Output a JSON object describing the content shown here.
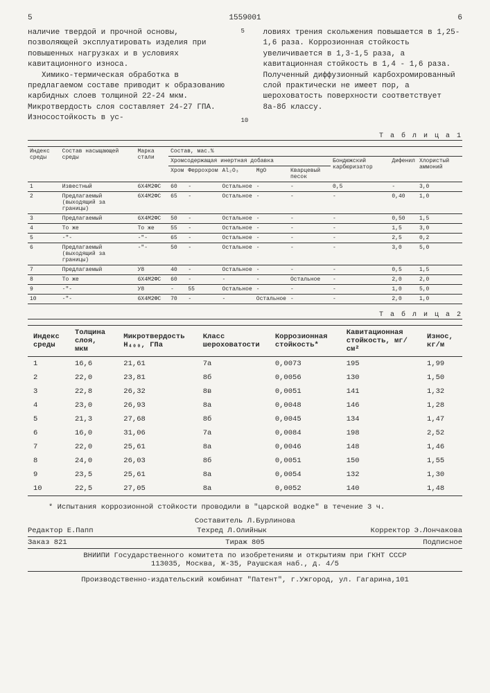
{
  "header": {
    "page_left": "5",
    "doc_number": "1559001",
    "page_right": "6"
  },
  "col_left": {
    "p1": "наличие твердой и прочной основы, позволяющей эксплуатировать изделия при повышенных нагрузках и в условиях кавитационного износа.",
    "p2": "Химико-термическая обработка в предлагаемом составе приводит к образованию карбидных слоев толщиной 22-24 мкм. Микротвердость слоя составляет 24-27 ГПА. Износостойкость в ус-"
  },
  "col_right": {
    "p1": "ловиях трения скольжения повышается в 1,25-1,6 раза. Коррозионная стойкость увеличивается в 1,3-1,5 раза, а кавитационная стойкость в 1,4 - 1,6 раза. Полученный диффузионный карбохромированный слой практически не имеет пор, а шероховатость поверхности соответствует 8а-8б классу."
  },
  "line_marks": {
    "m5": "5",
    "m10": "10"
  },
  "table1_label": "Т а б л и ц а 1",
  "table1_headers": {
    "h1": "Индекс среды",
    "h2": "Состав насыщающей среды",
    "h3": "Марка стали",
    "h4": "Состав, мас.%",
    "h5": "Хромсодержащая инертная добавка",
    "h6": "Бондюжский карбюризатор",
    "h7": "Дифенил",
    "h8": "Хлористый аммоний",
    "s1": "Хром",
    "s2": "Феррохром",
    "s3": "Al₂O₃",
    "s4": "MgO",
    "s5": "Кварцевый песок"
  },
  "table1_rows": [
    [
      "1",
      "Известный",
      "6Х4М2ФС",
      "60",
      "-",
      "Остальное",
      "-",
      "-",
      "0,5",
      "-",
      "3,0"
    ],
    [
      "2",
      "Предлагаемый (выходящий за границы)",
      "6Х4М2ФС",
      "65",
      "-",
      "Остальное",
      "-",
      "-",
      "-",
      "0,40",
      "1,0"
    ],
    [
      "3",
      "Предлагаемый",
      "6Х4М2ФС",
      "50",
      "-",
      "Остальное",
      "-",
      "-",
      "-",
      "0,50",
      "1,5"
    ],
    [
      "4",
      "То же",
      "То же",
      "55",
      "-",
      "Остальное",
      "-",
      "-",
      "-",
      "1,5",
      "3,0"
    ],
    [
      "5",
      "-\"-",
      "-\"-",
      "65",
      "-",
      "Остальное",
      "-",
      "-",
      "-",
      "2,5",
      "0,2"
    ],
    [
      "6",
      "Предлагаемый (выходящий за границы)",
      "-\"-",
      "50",
      "-",
      "Остальное",
      "-",
      "-",
      "-",
      "3,0",
      "5,0"
    ],
    [
      "7",
      "Предлагаемый",
      "У8",
      "40",
      "-",
      "Остальное",
      "-",
      "-",
      "-",
      "0,5",
      "1,5"
    ],
    [
      "8",
      "То же",
      "6Х4М2ФС",
      "60",
      "-",
      "-",
      "-",
      "Остальное",
      "-",
      "2,0",
      "2,0"
    ],
    [
      "9",
      "-\"-",
      "У8",
      "-",
      "55",
      "Остальное",
      "-",
      "-",
      "-",
      "1,0",
      "5,0"
    ],
    [
      "10",
      "-\"-",
      "6Х4М2ФС",
      "70",
      "-",
      "-",
      "Остальное",
      "-",
      "-",
      "2,0",
      "1,0"
    ]
  ],
  "table2_label": "Т а б л и ц а  2",
  "table2_headers": [
    "Индекс среды",
    "Толщина слоя, мкм",
    "Микротвердость H₄₀₀, ГПа",
    "Класс шероховатости",
    "Коррозионная стойкость*",
    "Кавитационная стойкость, мг/см²",
    "Износ, кг/м"
  ],
  "table2_rows": [
    [
      "1",
      "16,6",
      "21,61",
      "7а",
      "0,0073",
      "195",
      "1,99"
    ],
    [
      "2",
      "22,0",
      "23,81",
      "8б",
      "0,0056",
      "130",
      "1,50"
    ],
    [
      "3",
      "22,8",
      "26,32",
      "8в",
      "0,0051",
      "141",
      "1,32"
    ],
    [
      "4",
      "23,0",
      "26,93",
      "8а",
      "0,0048",
      "146",
      "1,28"
    ],
    [
      "5",
      "21,3",
      "27,68",
      "8б",
      "0,0045",
      "134",
      "1,47"
    ],
    [
      "6",
      "16,0",
      "31,06",
      "7а",
      "0,0084",
      "198",
      "2,52"
    ],
    [
      "7",
      "22,0",
      "25,61",
      "8а",
      "0,0046",
      "148",
      "1,46"
    ],
    [
      "8",
      "24,0",
      "26,03",
      "8б",
      "0,0051",
      "150",
      "1,55"
    ],
    [
      "9",
      "23,5",
      "25,61",
      "8а",
      "0,0054",
      "132",
      "1,30"
    ],
    [
      "10",
      "22,5",
      "27,05",
      "8а",
      "0,0052",
      "140",
      "1,48"
    ]
  ],
  "footnote": "* Испытания коррозионной стойкости проводили в \"царской водке\" в течение 3 ч.",
  "credits": {
    "compiler": "Составитель  Л.Бурлинова",
    "editor": "Редактор Е.Папп",
    "tech_editor": "Техред Л.Олийнык",
    "corrector": "Корректор Э.Лончакова"
  },
  "order": {
    "order_no": "Заказ 821",
    "circulation": "Тираж  805",
    "subscription": "Подписное"
  },
  "org": {
    "line1": "ВНИИПИ Государственного комитета по изобретениям и открытиям при ГКНТ СССР",
    "line2": "113035, Москва, Ж-35, Раушская наб., д. 4/5"
  },
  "print": "Производственно-издательский комбинат \"Патент\", г.Ужгород, ул. Гагарина,101"
}
